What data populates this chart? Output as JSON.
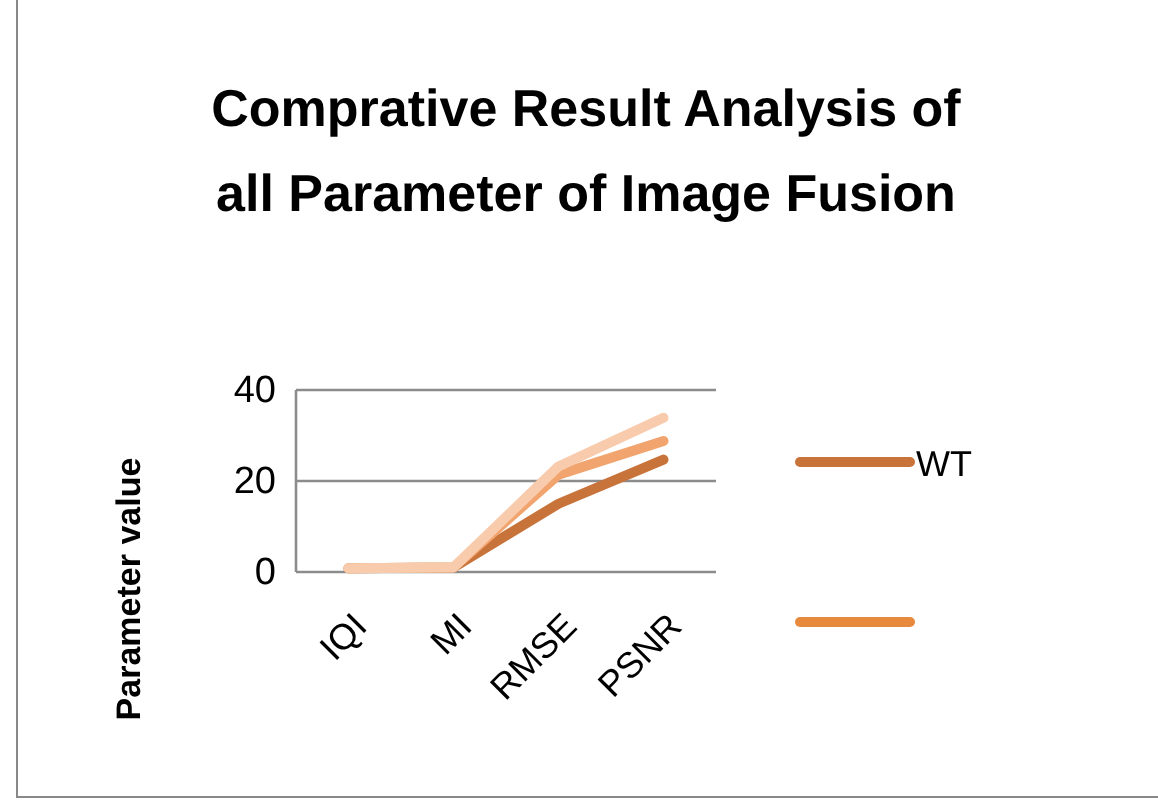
{
  "chart_data": {
    "type": "line",
    "title": "Comprative Result Analysis of all Parameter of Image Fusion",
    "ylabel": "Parameter value",
    "categories": [
      "IQI",
      "MI",
      "RMSE",
      "PSNR"
    ],
    "series": [
      {
        "name": "WT",
        "color": "#c8733a",
        "values": [
          0.8,
          1,
          15,
          24.7
        ]
      },
      {
        "color": "#f1a46e",
        "values": [
          0.8,
          1,
          21.4,
          28.8
        ]
      },
      {
        "color": "#f8cbad",
        "values": [
          0.8,
          1,
          23.2,
          33.9
        ]
      }
    ],
    "ylim": [
      0,
      40
    ],
    "yticks": [
      0,
      20,
      40
    ],
    "grid": "y",
    "legend": "right",
    "line_style": "solid",
    "marker": "none"
  }
}
